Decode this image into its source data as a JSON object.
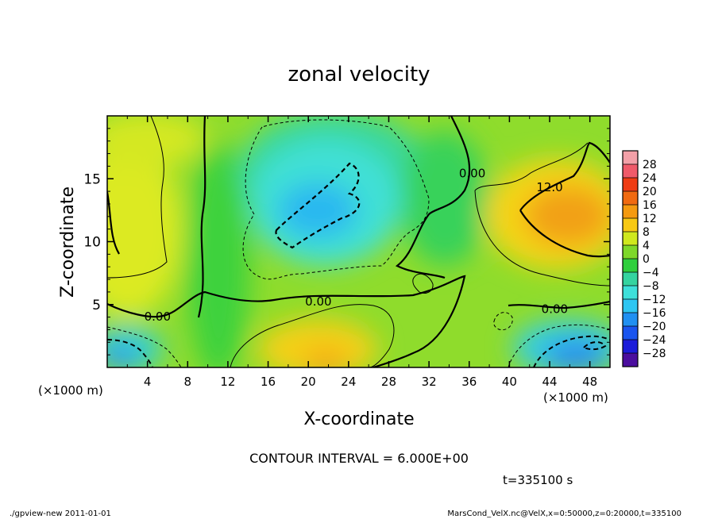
{
  "chart_data": {
    "type": "heatmap",
    "subtype": "filled contour",
    "title": "zonal velocity",
    "xlabel": "X-coordinate",
    "ylabel": "Z-coordinate",
    "x_unit_label": "(×1000 m)",
    "z_unit_label": "(×1000 m)",
    "xlim": [
      0,
      50
    ],
    "ylim": [
      0,
      20
    ],
    "x_ticks": [
      4,
      8,
      12,
      16,
      20,
      24,
      28,
      32,
      36,
      40,
      44,
      48
    ],
    "y_ticks": [
      5,
      10,
      15
    ],
    "colorbar_levels": [
      -28,
      -24,
      -20,
      -16,
      -12,
      -8,
      -4,
      0,
      4,
      8,
      12,
      16,
      20,
      24,
      28
    ],
    "colorbar_colors": [
      "#4b0e9e",
      "#1c1cd9",
      "#1a55ef",
      "#2090f2",
      "#2ec6f2",
      "#3ee0da",
      "#35d4a0",
      "#2fcf3d",
      "#7ed82a",
      "#cfe81e",
      "#f8c914",
      "#f59a10",
      "#f16a10",
      "#ef3c14",
      "#f05a6a",
      "#f3a0a8"
    ],
    "contour_interval_text": "CONTOUR INTERVAL = 6.000E+00",
    "contour_labels": [
      {
        "text": "0.00",
        "x": 5.0,
        "z": 4.1
      },
      {
        "text": "0.00",
        "x": 21.0,
        "z": 5.3
      },
      {
        "text": "0.00",
        "x": 44.5,
        "z": 4.7
      },
      {
        "text": "0.00",
        "x": 36.3,
        "z": 15.5
      },
      {
        "text": "12.0",
        "x": 44.0,
        "z": 14.4
      }
    ],
    "features": [
      {
        "kind": "max",
        "x": 46,
        "z": 12,
        "value": 16
      },
      {
        "kind": "max",
        "x": 22,
        "z": 1,
        "value": 14
      },
      {
        "kind": "min",
        "x": 23,
        "z": 12.5,
        "value": -12
      },
      {
        "kind": "min",
        "x": 46,
        "z": 1.5,
        "value": -14
      },
      {
        "kind": "min",
        "x": 1,
        "z": 1,
        "value": -12
      }
    ],
    "grid": false,
    "colorbar_position": "right"
  },
  "time_label": "t=335100 s",
  "footer_left": "./gpview-new  2011-01-01",
  "footer_right": "MarsCond_VelX.nc@VelX,x=0:50000,z=0:20000,t=335100"
}
